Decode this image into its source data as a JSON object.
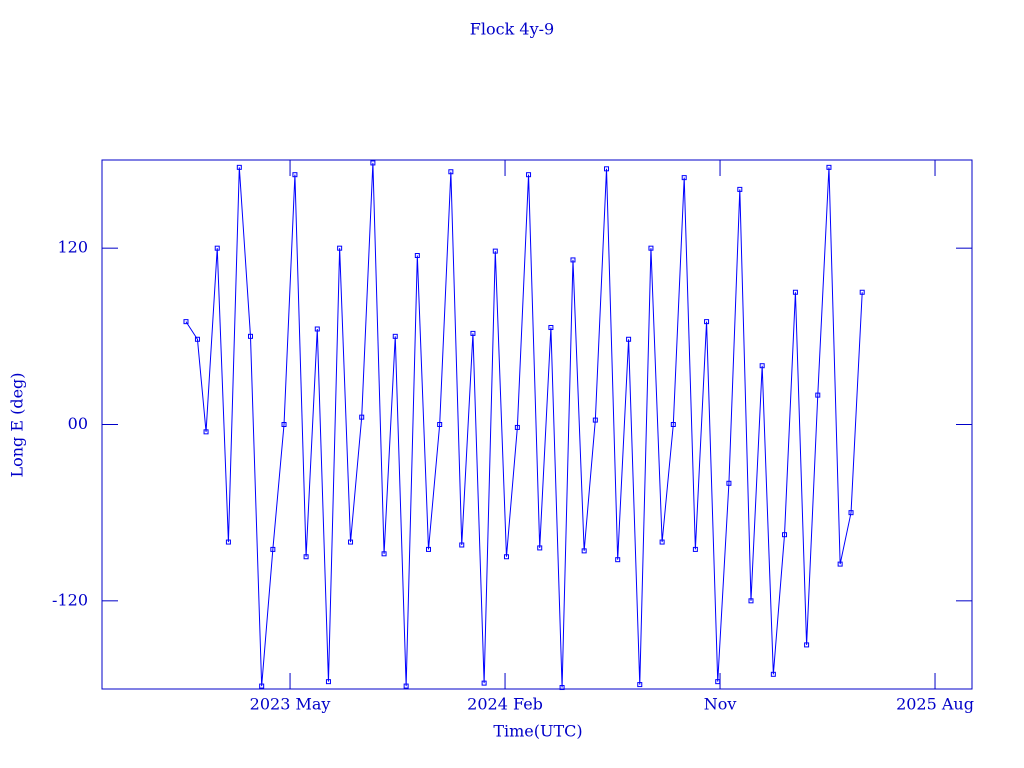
{
  "chart_data": {
    "type": "line",
    "title": "Flock 4y-9",
    "x_label": "Time(UTC)",
    "y_label": "Long E (deg)",
    "xlim": [
      2022.677,
      2025.712
    ],
    "ylim": [
      -180,
      180
    ],
    "xticks": [
      {
        "value": 2023.333,
        "label": "2023 May"
      },
      {
        "value": 2024.083,
        "label": "2024 Feb"
      },
      {
        "value": 2024.833,
        "label": "Nov"
      },
      {
        "value": 2025.583,
        "label": "2025 Aug"
      }
    ],
    "yticks": [
      -120,
      {
        "value": 0,
        "label": "00"
      },
      120
    ],
    "series": [
      {
        "color": "#0000ff",
        "x": [
          2022.97,
          2023.01,
          2023.04,
          2023.079,
          2023.118,
          2023.156,
          2023.195,
          2023.234,
          2023.273,
          2023.312,
          2023.35,
          2023.389,
          2023.428,
          2023.467,
          2023.506,
          2023.544,
          2023.583,
          2023.622,
          2023.661,
          2023.7,
          2023.738,
          2023.777,
          2023.816,
          2023.855,
          2023.894,
          2023.932,
          2023.971,
          2024.01,
          2024.049,
          2024.088,
          2024.126,
          2024.165,
          2024.204,
          2024.243,
          2024.282,
          2024.32,
          2024.359,
          2024.398,
          2024.437,
          2024.476,
          2024.514,
          2024.553,
          2024.592,
          2024.631,
          2024.67,
          2024.708,
          2024.747,
          2024.786,
          2024.825,
          2024.864,
          2024.902,
          2024.941,
          2024.98,
          2025.019,
          2025.058,
          2025.096,
          2025.135,
          2025.174,
          2025.213,
          2025.252,
          2025.29,
          2025.329
        ],
        "values": [
          70,
          58,
          -5,
          120,
          -80,
          175,
          60,
          -178,
          -85,
          0,
          170,
          -90,
          65,
          -175,
          120,
          -80,
          5,
          178,
          -88,
          60,
          -178,
          115,
          -85,
          0,
          172,
          -82,
          62,
          -176,
          118,
          -90,
          -2,
          170,
          -84,
          66,
          -179,
          112,
          -86,
          3,
          174,
          -92,
          58,
          -177,
          120,
          -80,
          0,
          168,
          -85,
          70,
          -175,
          -40,
          160,
          -120,
          40,
          -170,
          -75,
          90,
          -150,
          20,
          175,
          -95,
          -60,
          90
        ]
      }
    ]
  }
}
